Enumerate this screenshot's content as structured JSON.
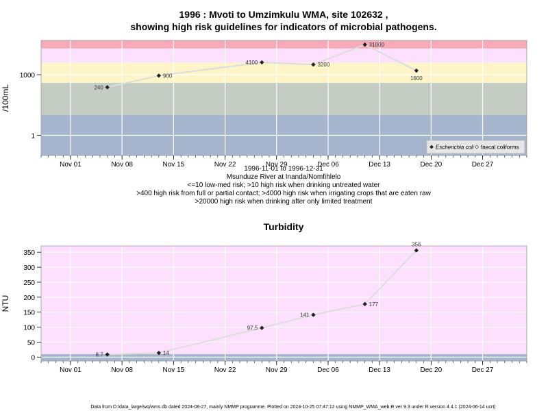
{
  "colors": {
    "band_blue": "#a5b5cd",
    "band_grey": "#c4cdc4",
    "band_yellow": "#fdf5c8",
    "band_pink": "#fde0fd",
    "band_red": "#f6a9b9",
    "line": "#dcdcdc",
    "grid": "#ffffff",
    "marker": "#222222"
  },
  "chart_data": [
    {
      "type": "line",
      "title": "1996 : Mvoti to Umzimkulu WMA, site 102632 ,",
      "subtitle": "showing high risk guidelines for indicators of microbial pathogens.",
      "ylabel": "/100mL",
      "x_scale": "date",
      "y_scale": "log10",
      "xlim": [
        "1996-10-28",
        "1997-01-02"
      ],
      "ylim": [
        0.1,
        50000
      ],
      "x_ticks": [
        {
          "date": "1996-11-01",
          "label": "Nov 01"
        },
        {
          "date": "1996-11-08",
          "label": "Nov 08"
        },
        {
          "date": "1996-11-15",
          "label": "Nov 15"
        },
        {
          "date": "1996-11-22",
          "label": "Nov 22"
        },
        {
          "date": "1996-11-29",
          "label": "Nov 29"
        },
        {
          "date": "1996-12-06",
          "label": "Dec 06"
        },
        {
          "date": "1996-12-13",
          "label": "Dec 13"
        },
        {
          "date": "1996-12-20",
          "label": "Dec 20"
        },
        {
          "date": "1996-12-27",
          "label": "Dec 27"
        }
      ],
      "y_ticks": [
        {
          "value": 1,
          "label": "1"
        },
        {
          "value": 1000,
          "label": "1000"
        }
      ],
      "bands": [
        {
          "from": 0.1,
          "to": 10,
          "color": "band_blue"
        },
        {
          "from": 10,
          "to": 400,
          "color": "band_grey"
        },
        {
          "from": 400,
          "to": 4000,
          "color": "band_yellow"
        },
        {
          "from": 4000,
          "to": 20000,
          "color": "band_pink"
        },
        {
          "from": 20000,
          "to": 50000,
          "color": "band_red"
        }
      ],
      "series": [
        {
          "name": "Escherichia coli",
          "points": [
            {
              "x": "1996-11-06",
              "y": 240,
              "label": "240",
              "label_pos": "left"
            },
            {
              "x": "1996-11-13",
              "y": 900,
              "label": "900",
              "label_pos": "right"
            },
            {
              "x": "1996-11-27",
              "y": 4100,
              "label": "4100",
              "label_pos": "left"
            },
            {
              "x": "1996-12-04",
              "y": 3200,
              "label": "3200",
              "label_pos": "right"
            },
            {
              "x": "1996-12-11",
              "y": 31000,
              "label": "31000",
              "label_pos": "right"
            },
            {
              "x": "1996-12-18",
              "y": 1600,
              "label": "1600",
              "label_pos": "below"
            }
          ]
        }
      ],
      "legend": {
        "position": "bottom-right",
        "items": [
          {
            "label": "Escherichia coli",
            "marker": "filled-diamond",
            "italic": true
          },
          {
            "label": "faecal coliforms",
            "marker": "open-diamond",
            "italic": false
          }
        ]
      },
      "notes": [
        "1996-11-01 to 1996-12-31",
        "Msunduze River at Inanda/Nomfihlelo",
        "<=10 low-med risk; >10 high risk when drinking untreated water",
        ">400 high risk from full or partial contact; >4000 high risk when irrigating crops that are eaten raw",
        ">20000 high risk when drinking after only limited treatment"
      ]
    },
    {
      "type": "line",
      "title": "Turbidity",
      "ylabel": "NTU",
      "x_scale": "date",
      "xlim": [
        "1996-10-28",
        "1997-01-02"
      ],
      "ylim": [
        -13,
        371
      ],
      "x_ticks": [
        {
          "date": "1996-11-01",
          "label": "Nov 01"
        },
        {
          "date": "1996-11-08",
          "label": "Nov 08"
        },
        {
          "date": "1996-11-15",
          "label": "Nov 15"
        },
        {
          "date": "1996-11-22",
          "label": "Nov 22"
        },
        {
          "date": "1996-11-29",
          "label": "Nov 29"
        },
        {
          "date": "1996-12-06",
          "label": "Dec 06"
        },
        {
          "date": "1996-12-13",
          "label": "Dec 13"
        },
        {
          "date": "1996-12-20",
          "label": "Dec 20"
        },
        {
          "date": "1996-12-27",
          "label": "Dec 27"
        }
      ],
      "y_ticks": [
        {
          "value": 0,
          "label": "0"
        },
        {
          "value": 50,
          "label": "50"
        },
        {
          "value": 100,
          "label": "100"
        },
        {
          "value": 150,
          "label": "150"
        },
        {
          "value": 200,
          "label": "200"
        },
        {
          "value": 250,
          "label": "250"
        },
        {
          "value": 300,
          "label": "300"
        },
        {
          "value": 350,
          "label": "350"
        }
      ],
      "bands": [
        {
          "from": -13,
          "to": 10,
          "color": "band_blue"
        },
        {
          "from": 10,
          "to": 371,
          "color": "band_pink"
        }
      ],
      "series": [
        {
          "points": [
            {
              "x": "1996-11-06",
              "y": 8.7,
              "label": "8.7",
              "label_pos": "left"
            },
            {
              "x": "1996-11-13",
              "y": 14,
              "label": "14",
              "label_pos": "right"
            },
            {
              "x": "1996-11-27",
              "y": 97.5,
              "label": "97.5",
              "label_pos": "left"
            },
            {
              "x": "1996-12-04",
              "y": 141,
              "label": "141",
              "label_pos": "left"
            },
            {
              "x": "1996-12-11",
              "y": 177,
              "label": "177",
              "label_pos": "right"
            },
            {
              "x": "1996-12-18",
              "y": 356,
              "label": "356",
              "label_pos": "above"
            }
          ]
        }
      ]
    }
  ],
  "footer": "Data from D:/data_large/wq/wms.db dated 2024-08-27, mainly NMMP programme. Plotted on 2024-10-25 07:47:12 using NMMP_WMA_web.R ver 9.3 under R version 4.4.1 (2024-06-14 ucrt)"
}
